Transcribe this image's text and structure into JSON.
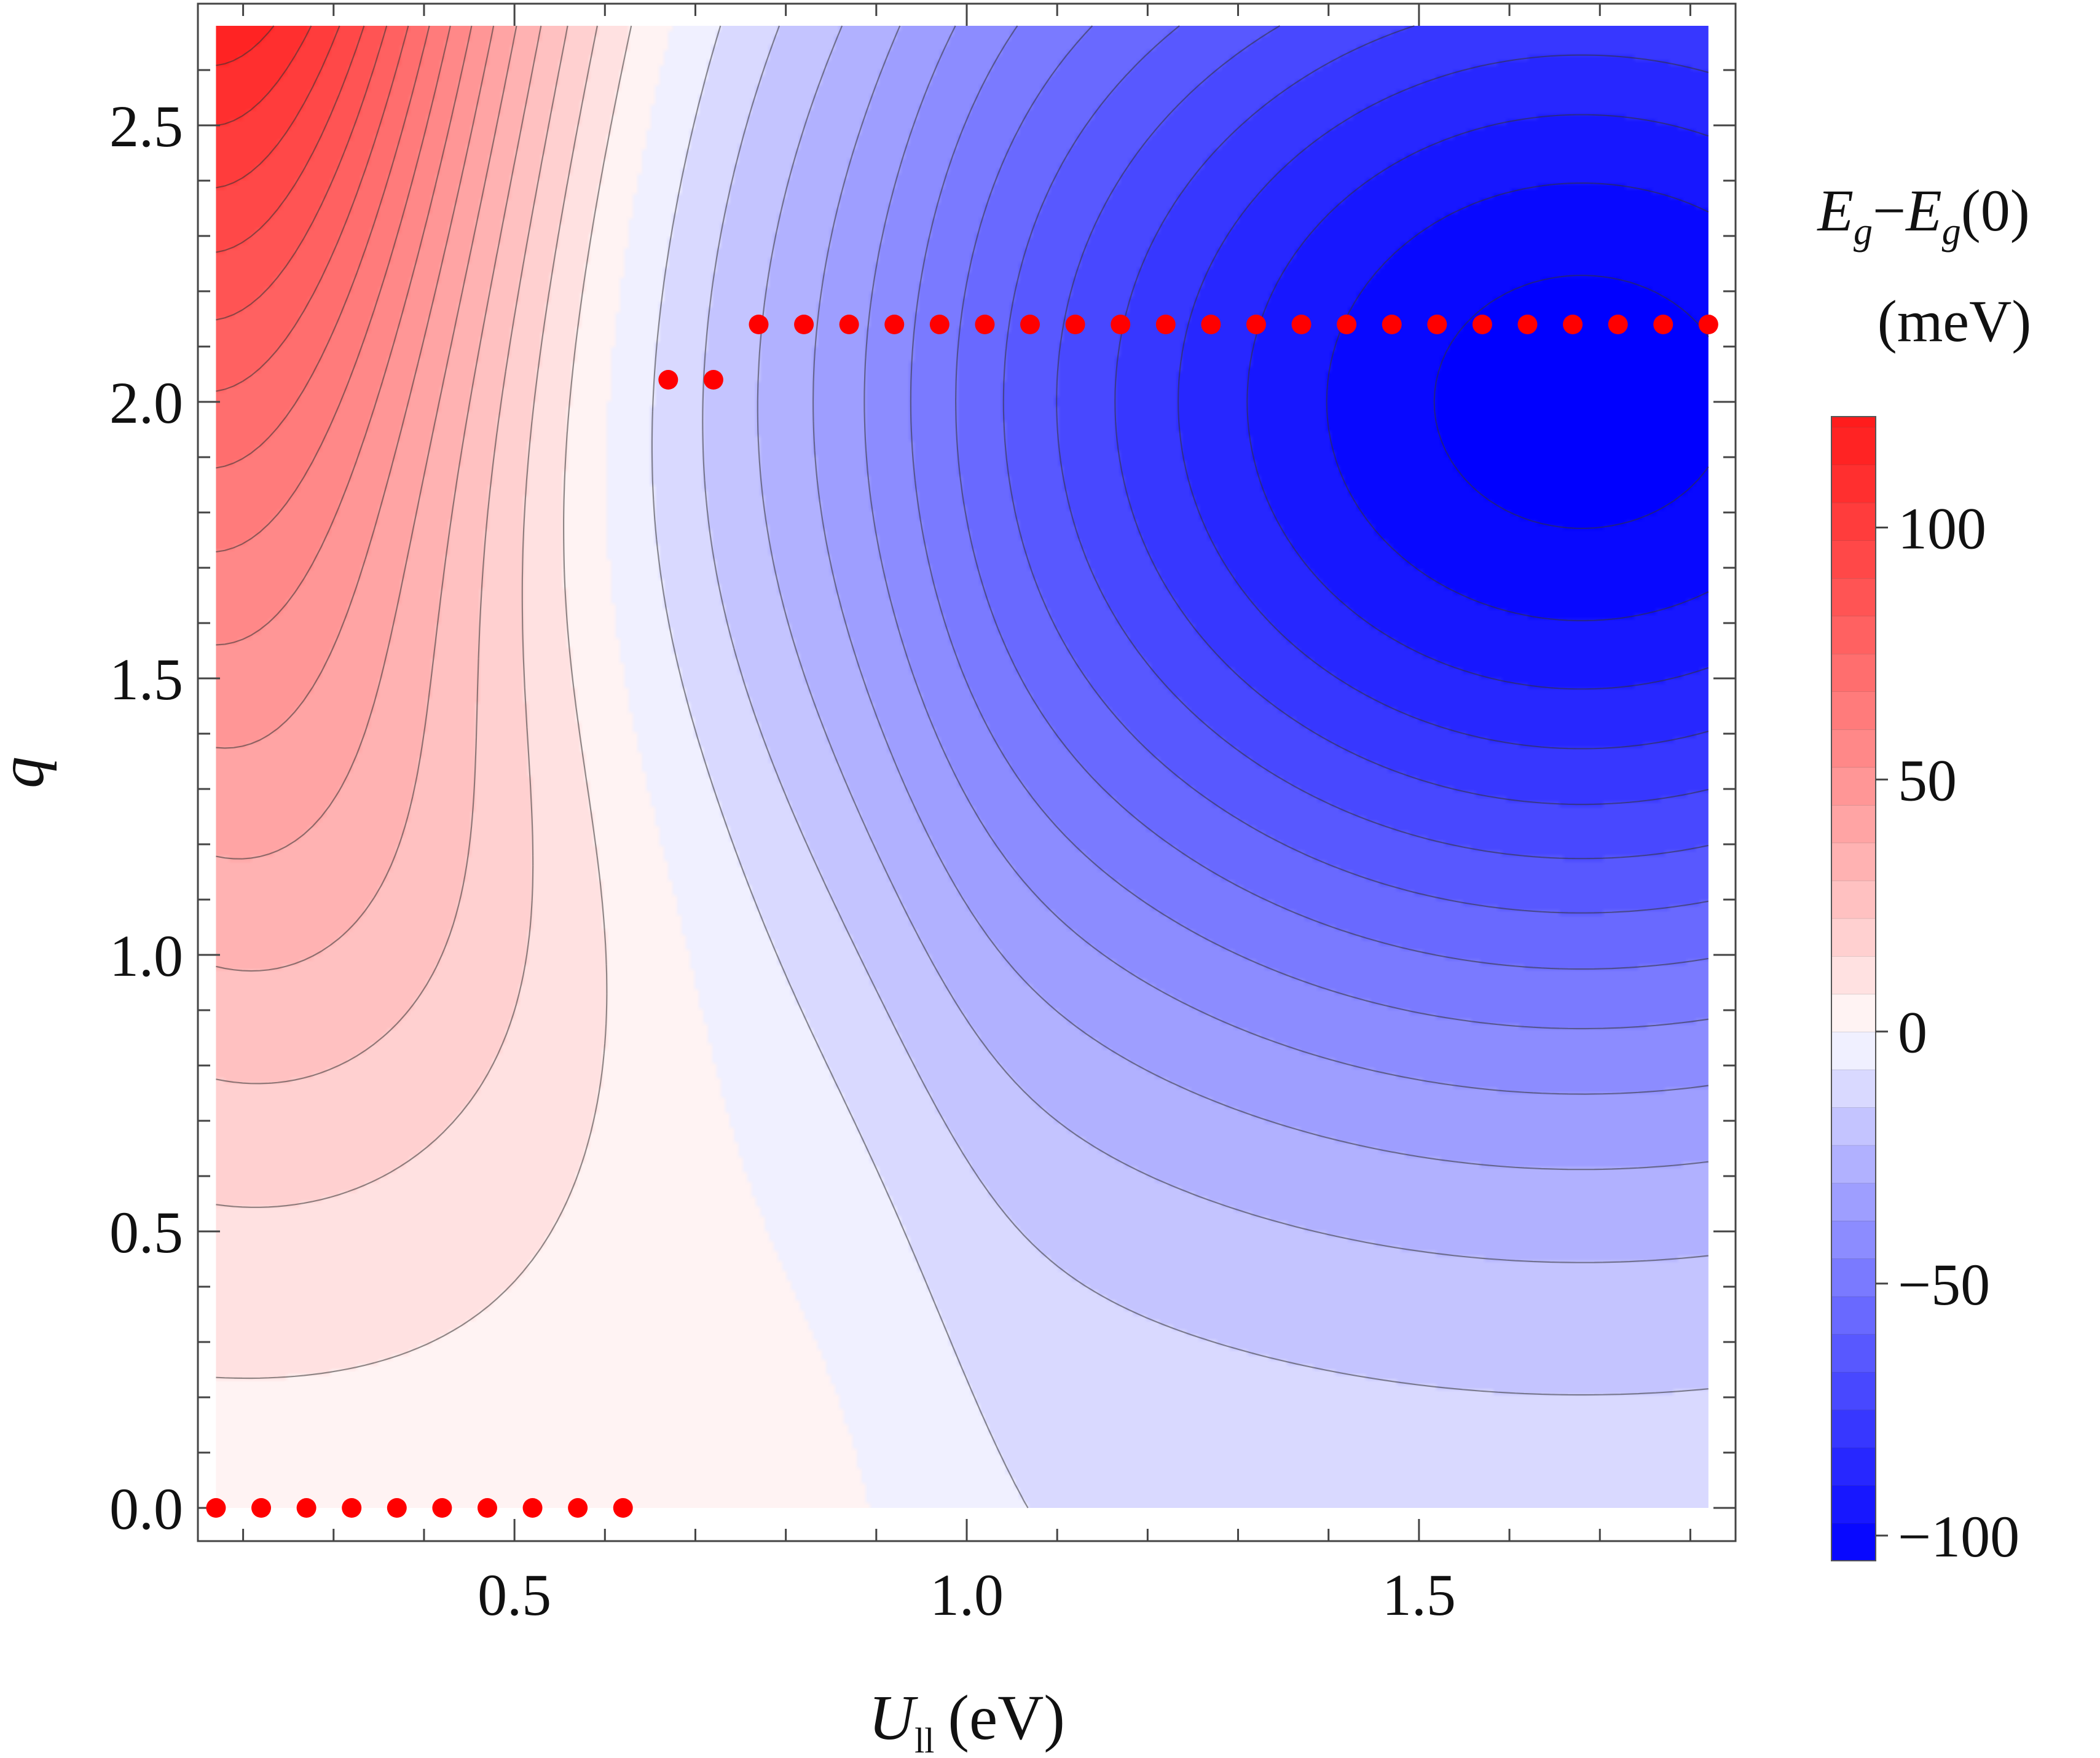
{
  "chart_data": {
    "type": "heatmap",
    "xlabel": {
      "symbol": "U",
      "subscript": "ll",
      "unit": "(eV)"
    },
    "ylabel": "q",
    "xlim": [
      0.15,
      1.85
    ],
    "ylim": [
      -0.06,
      2.72
    ],
    "data_domain": {
      "x": [
        0.17,
        1.82
      ],
      "y": [
        0.0,
        2.68
      ]
    },
    "x_ticks": [
      {
        "value": 0.5,
        "label": "0.5"
      },
      {
        "value": 1.0,
        "label": "1.0"
      },
      {
        "value": 1.5,
        "label": "1.5"
      }
    ],
    "y_ticks": [
      {
        "value": 0.0,
        "label": "0.0"
      },
      {
        "value": 0.5,
        "label": "0.5"
      },
      {
        "value": 1.0,
        "label": "1.0"
      },
      {
        "value": 1.5,
        "label": "1.5"
      },
      {
        "value": 2.0,
        "label": "2.0"
      },
      {
        "value": 2.5,
        "label": "2.5"
      }
    ],
    "colorbar": {
      "title_line1": "E_g−E_g(0)",
      "title_line2": "(meV)",
      "range": [
        -105,
        122
      ],
      "contour_step": 7.5,
      "ticks": [
        {
          "value": 100,
          "label": "100"
        },
        {
          "value": 50,
          "label": "50"
        },
        {
          "value": 0,
          "label": "0"
        },
        {
          "value": -50,
          "label": "−50"
        },
        {
          "value": -100,
          "label": "−100"
        }
      ],
      "colors": {
        "positive": "#ff1a1a",
        "zero": "#ffffff",
        "negative": "#0000ff"
      }
    },
    "optimal_q_points": {
      "color": "#ff0000",
      "points": [
        [
          0.17,
          0.0
        ],
        [
          0.22,
          0.0
        ],
        [
          0.27,
          0.0
        ],
        [
          0.32,
          0.0
        ],
        [
          0.37,
          0.0
        ],
        [
          0.42,
          0.0
        ],
        [
          0.47,
          0.0
        ],
        [
          0.52,
          0.0
        ],
        [
          0.57,
          0.0
        ],
        [
          0.62,
          0.0
        ],
        [
          0.67,
          2.04
        ],
        [
          0.72,
          2.04
        ],
        [
          0.77,
          2.14
        ],
        [
          0.82,
          2.14
        ],
        [
          0.87,
          2.14
        ],
        [
          0.92,
          2.14
        ],
        [
          0.97,
          2.14
        ],
        [
          1.02,
          2.14
        ],
        [
          1.07,
          2.14
        ],
        [
          1.12,
          2.14
        ],
        [
          1.17,
          2.14
        ],
        [
          1.22,
          2.14
        ],
        [
          1.27,
          2.14
        ],
        [
          1.32,
          2.14
        ],
        [
          1.37,
          2.14
        ],
        [
          1.42,
          2.14
        ],
        [
          1.47,
          2.14
        ],
        [
          1.52,
          2.14
        ],
        [
          1.57,
          2.14
        ],
        [
          1.62,
          2.14
        ],
        [
          1.67,
          2.14
        ],
        [
          1.72,
          2.14
        ],
        [
          1.77,
          2.14
        ],
        [
          1.82,
          2.14
        ]
      ]
    }
  }
}
